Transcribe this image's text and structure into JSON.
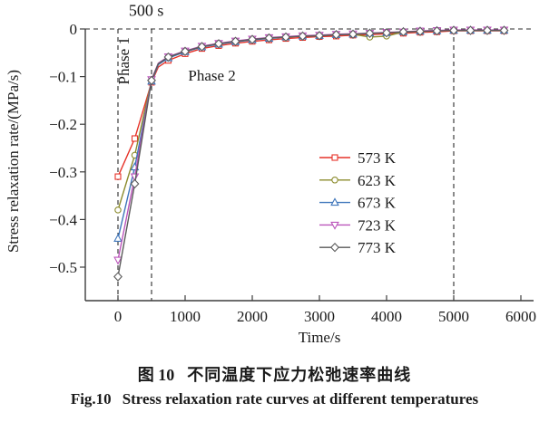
{
  "caption": {
    "cn_label": "图 10",
    "cn_text": "不同温度下应力松弛速率曲线",
    "en_label": "Fig.10",
    "en_text": "Stress relaxation rate curves at different temperatures"
  },
  "chart_data": {
    "type": "line",
    "title": "",
    "xlabel": "Time/s",
    "ylabel": "Stress relaxation rate/(MPa/s)",
    "xlim": [
      -490,
      6190
    ],
    "ylim": [
      -0.57,
      0
    ],
    "grid": false,
    "legend_position": "center-right",
    "x_ticks": {
      "values": [
        0,
        1000,
        2000,
        3000,
        4000,
        5000,
        6000
      ],
      "labels": [
        "0",
        "1000",
        "2000",
        "3000",
        "4000",
        "5000",
        "6000"
      ]
    },
    "y_ticks": {
      "values": [
        0,
        -0.1,
        -0.2,
        -0.3,
        -0.4,
        -0.5
      ],
      "labels": [
        "0",
        "−0.1",
        "−0.2",
        "−0.3",
        "−0.4",
        "−0.5"
      ]
    },
    "reference_lines": {
      "horizontal_dashed": [
        0
      ],
      "vertical_dashed": [
        0,
        500,
        5000
      ]
    },
    "annotations": [
      {
        "text": "500 s",
        "t": 420,
        "v": 0.028,
        "rotate": 0,
        "size": 18
      },
      {
        "text": "Phase 1",
        "t": 160,
        "v": -0.067,
        "rotate": -90,
        "size": 17
      },
      {
        "text": "Phase 2",
        "t": 1400,
        "v": -0.108,
        "rotate": 0,
        "size": 17
      }
    ],
    "x": [
      0,
      250,
      500,
      600,
      750,
      1000,
      1250,
      1500,
      1750,
      2000,
      2250,
      2500,
      2750,
      3000,
      3250,
      3500,
      3750,
      4000,
      4250,
      4500,
      4750,
      5000,
      5250,
      5500,
      5750
    ],
    "marker_x": [
      0,
      250,
      500,
      750,
      1000,
      1250,
      1500,
      1750,
      2000,
      2250,
      2500,
      2750,
      3000,
      3250,
      3500,
      3750,
      4000,
      4250,
      4500,
      4750,
      5000,
      5250,
      5500,
      5750
    ],
    "series": [
      {
        "name": "573 K",
        "color": "#e63228",
        "marker": "square",
        "y": [
          -0.31,
          -0.23,
          -0.112,
          -0.08,
          -0.066,
          -0.052,
          -0.041,
          -0.035,
          -0.03,
          -0.026,
          -0.023,
          -0.02,
          -0.018,
          -0.016,
          -0.015,
          -0.013,
          -0.012,
          -0.01,
          -0.009,
          -0.007,
          -0.006,
          -0.004,
          -0.004,
          -0.004,
          -0.004
        ]
      },
      {
        "name": "623 K",
        "color": "#8c8c2e",
        "marker": "circle",
        "y": [
          -0.38,
          -0.265,
          -0.108,
          -0.074,
          -0.06,
          -0.047,
          -0.037,
          -0.031,
          -0.026,
          -0.022,
          -0.019,
          -0.017,
          -0.015,
          -0.014,
          -0.012,
          -0.011,
          -0.017,
          -0.015,
          -0.006,
          -0.005,
          -0.004,
          -0.003,
          -0.003,
          -0.003,
          -0.003
        ]
      },
      {
        "name": "673 K",
        "color": "#3f76bb",
        "marker": "triangle-up",
        "y": [
          -0.44,
          -0.29,
          -0.11,
          -0.075,
          -0.061,
          -0.048,
          -0.038,
          -0.032,
          -0.027,
          -0.023,
          -0.02,
          -0.017,
          -0.015,
          -0.014,
          -0.012,
          -0.011,
          -0.009,
          -0.008,
          -0.006,
          -0.005,
          -0.004,
          -0.003,
          -0.003,
          -0.003,
          -0.003
        ]
      },
      {
        "name": "723 K",
        "color": "#bb55bb",
        "marker": "triangle-down",
        "y": [
          -0.485,
          -0.31,
          -0.106,
          -0.072,
          -0.058,
          -0.046,
          -0.036,
          -0.03,
          -0.025,
          -0.021,
          -0.018,
          -0.016,
          -0.014,
          -0.013,
          -0.011,
          -0.01,
          -0.009,
          -0.007,
          -0.006,
          -0.004,
          -0.003,
          -0.002,
          -0.002,
          -0.002,
          -0.002
        ]
      },
      {
        "name": "773 K",
        "color": "#5a5a5a",
        "marker": "diamond",
        "y": [
          -0.52,
          -0.325,
          -0.108,
          -0.073,
          -0.059,
          -0.047,
          -0.037,
          -0.031,
          -0.026,
          -0.022,
          -0.019,
          -0.017,
          -0.015,
          -0.014,
          -0.012,
          -0.011,
          -0.009,
          -0.008,
          -0.006,
          -0.005,
          -0.004,
          -0.003,
          -0.003,
          -0.003,
          -0.003
        ]
      }
    ],
    "colors": {
      "axis": "#3d3d3d",
      "dashed": "#2b2b2b",
      "marker_fill": "#ffffff"
    }
  }
}
